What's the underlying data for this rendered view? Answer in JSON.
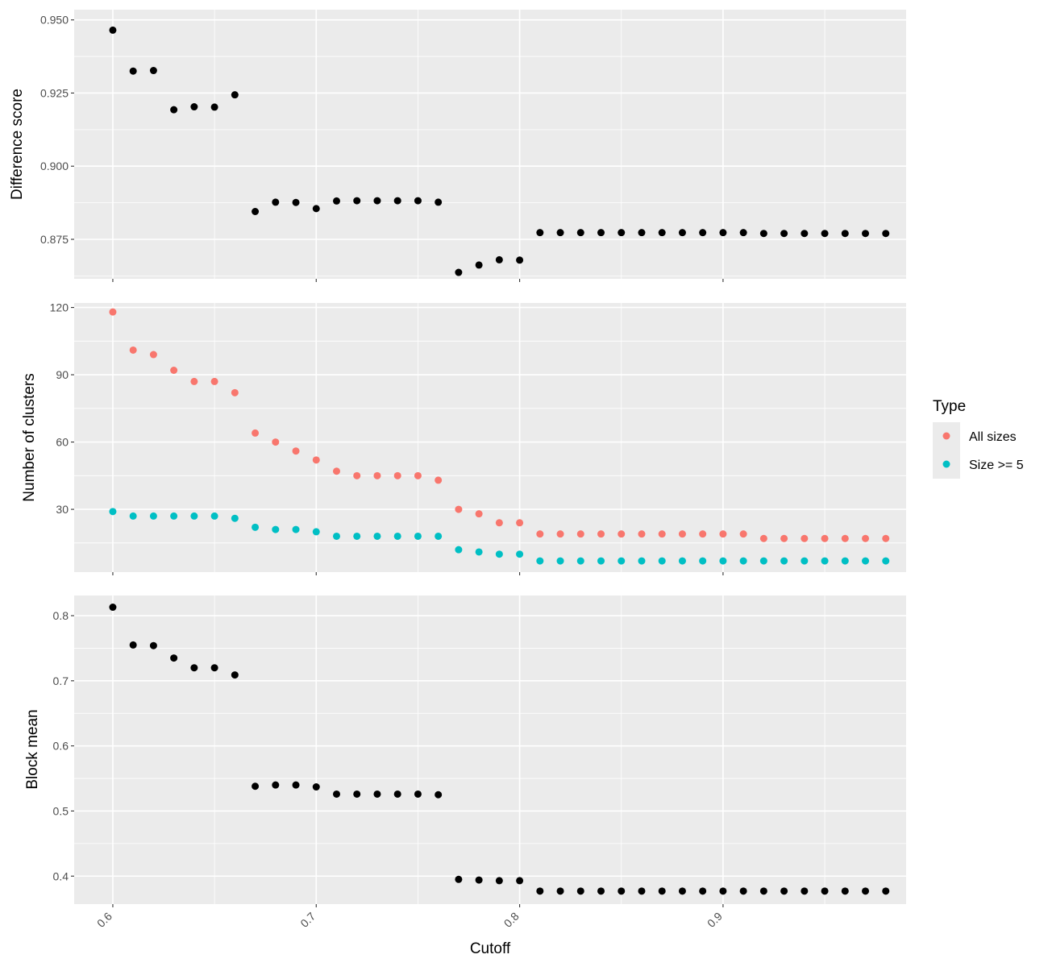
{
  "chart_data": [
    {
      "type": "scatter",
      "panel": "top",
      "ylabel": "Difference score",
      "xlim": [
        0.581,
        0.99
      ],
      "ylim": [
        0.8615,
        0.9535
      ],
      "yticks": [
        0.875,
        0.9,
        0.925,
        0.95
      ],
      "ytick_labels": [
        "0.875",
        "0.900",
        "0.925",
        "0.950"
      ],
      "grid": true,
      "color": "#000000",
      "x": [
        0.6,
        0.61,
        0.62,
        0.63,
        0.64,
        0.65,
        0.66,
        0.67,
        0.68,
        0.69,
        0.7,
        0.71,
        0.72,
        0.73,
        0.74,
        0.75,
        0.76,
        0.77,
        0.78,
        0.79,
        0.8,
        0.81,
        0.82,
        0.83,
        0.84,
        0.85,
        0.86,
        0.87,
        0.88,
        0.89,
        0.9,
        0.91,
        0.92,
        0.93,
        0.94,
        0.95,
        0.96,
        0.97,
        0.98
      ],
      "y": [
        0.9465,
        0.9325,
        0.9327,
        0.9193,
        0.9203,
        0.9202,
        0.9244,
        0.8845,
        0.8877,
        0.8876,
        0.8855,
        0.8881,
        0.8882,
        0.8882,
        0.8882,
        0.8882,
        0.8877,
        0.8637,
        0.8662,
        0.868,
        0.8679,
        0.8773,
        0.8773,
        0.8773,
        0.8773,
        0.8773,
        0.8773,
        0.8773,
        0.8773,
        0.8773,
        0.8773,
        0.8773,
        0.877,
        0.877,
        0.877,
        0.877,
        0.877,
        0.877,
        0.877
      ]
    },
    {
      "type": "scatter",
      "panel": "middle",
      "ylabel": "Number of clusters",
      "xlim": [
        0.581,
        0.99
      ],
      "ylim": [
        2,
        122
      ],
      "yticks": [
        30,
        60,
        90,
        120
      ],
      "ytick_labels": [
        "30",
        "60",
        "90",
        "120"
      ],
      "grid": true,
      "legend": {
        "title": "Type",
        "position": "right"
      },
      "x": [
        0.6,
        0.61,
        0.62,
        0.63,
        0.64,
        0.65,
        0.66,
        0.67,
        0.68,
        0.69,
        0.7,
        0.71,
        0.72,
        0.73,
        0.74,
        0.75,
        0.76,
        0.77,
        0.78,
        0.79,
        0.8,
        0.81,
        0.82,
        0.83,
        0.84,
        0.85,
        0.86,
        0.87,
        0.88,
        0.89,
        0.9,
        0.91,
        0.92,
        0.93,
        0.94,
        0.95,
        0.96,
        0.97,
        0.98
      ],
      "series": [
        {
          "name": "All sizes",
          "color": "#F8766D",
          "values": [
            118,
            101,
            99,
            92,
            87,
            87,
            82,
            64,
            60,
            56,
            52,
            47,
            45,
            45,
            45,
            45,
            43,
            30,
            28,
            24,
            24,
            19,
            19,
            19,
            19,
            19,
            19,
            19,
            19,
            19,
            19,
            19,
            17,
            17,
            17,
            17,
            17,
            17,
            17
          ]
        },
        {
          "name": "Size >= 5",
          "color": "#00BFC4",
          "values": [
            29,
            27,
            27,
            27,
            27,
            27,
            26,
            22,
            21,
            21,
            20,
            18,
            18,
            18,
            18,
            18,
            18,
            12,
            11,
            10,
            10,
            7,
            7,
            7,
            7,
            7,
            7,
            7,
            7,
            7,
            7,
            7,
            7,
            7,
            7,
            7,
            7,
            7,
            7
          ]
        }
      ]
    },
    {
      "type": "scatter",
      "panel": "bottom",
      "ylabel": "Block mean",
      "xlabel": "Cutoff",
      "xlim": [
        0.581,
        0.99
      ],
      "ylim": [
        0.357,
        0.831
      ],
      "yticks": [
        0.4,
        0.5,
        0.6,
        0.7,
        0.8
      ],
      "ytick_labels": [
        "0.4",
        "0.5",
        "0.6",
        "0.7",
        "0.8"
      ],
      "xticks": [
        0.6,
        0.7,
        0.8,
        0.9
      ],
      "xtick_labels": [
        "0.6",
        "0.7",
        "0.8",
        "0.9"
      ],
      "grid": true,
      "color": "#000000",
      "x": [
        0.6,
        0.61,
        0.62,
        0.63,
        0.64,
        0.65,
        0.66,
        0.67,
        0.68,
        0.69,
        0.7,
        0.71,
        0.72,
        0.73,
        0.74,
        0.75,
        0.76,
        0.77,
        0.78,
        0.79,
        0.8,
        0.81,
        0.82,
        0.83,
        0.84,
        0.85,
        0.86,
        0.87,
        0.88,
        0.89,
        0.9,
        0.91,
        0.92,
        0.93,
        0.94,
        0.95,
        0.96,
        0.97,
        0.98
      ],
      "y": [
        0.813,
        0.755,
        0.754,
        0.735,
        0.72,
        0.72,
        0.709,
        0.538,
        0.54,
        0.54,
        0.537,
        0.526,
        0.526,
        0.526,
        0.526,
        0.526,
        0.525,
        0.395,
        0.394,
        0.393,
        0.393,
        0.377,
        0.377,
        0.377,
        0.377,
        0.377,
        0.377,
        0.377,
        0.377,
        0.377,
        0.377,
        0.377,
        0.377,
        0.377,
        0.377,
        0.377,
        0.377,
        0.377,
        0.377
      ]
    }
  ]
}
